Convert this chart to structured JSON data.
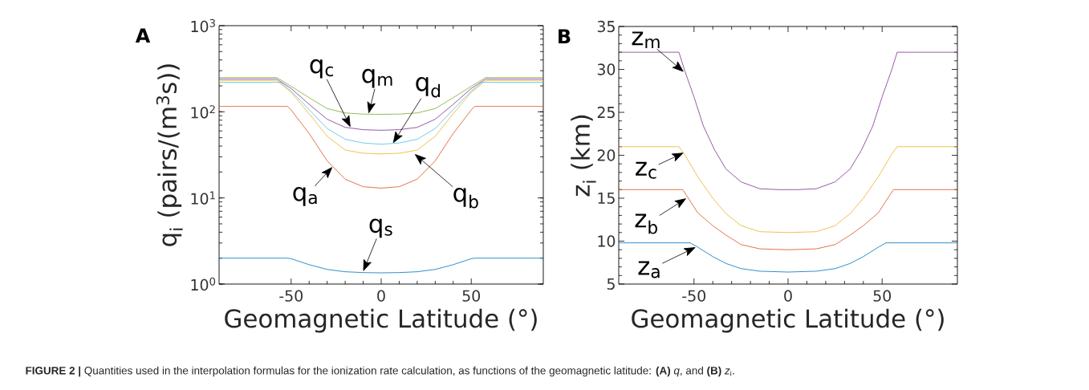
{
  "chart_data": [
    {
      "type": "line",
      "title": "A",
      "xlabel": "Geomagnetic Latitude (°)",
      "ylabel": "q$_{i}$ (pairs/(m$^{3}$s))",
      "log": "y",
      "xlim": [
        -90,
        90
      ],
      "xticks": [
        -50,
        0,
        50
      ],
      "ylim": [
        1,
        1000
      ],
      "yticks": [
        {
          "value": 1,
          "label": "10$^{0}$"
        },
        {
          "value": 10,
          "label": "10$^{1}$"
        },
        {
          "value": 100,
          "label": "10$^{2}$"
        },
        {
          "value": 1000,
          "label": "10$^{3}$"
        }
      ],
      "series": [
        {
          "color": "#0072bd",
          "x": [
            -90,
            -52,
            -50,
            -40,
            -30,
            -20,
            -10,
            0,
            10,
            20,
            30,
            40,
            50,
            52,
            90
          ],
          "values": [
            2,
            2,
            1.97,
            1.68,
            1.48,
            1.39,
            1.36,
            1.35,
            1.36,
            1.39,
            1.48,
            1.68,
            1.97,
            2,
            2
          ]
        },
        {
          "color": "#d95319",
          "x": [
            -90,
            -52,
            -50,
            -40,
            -30,
            -20,
            -10,
            0,
            10,
            20,
            30,
            40,
            50,
            52,
            90
          ],
          "values": [
            116,
            116,
            105,
            56,
            27,
            16.5,
            13.5,
            13,
            13.5,
            16.5,
            27,
            56,
            105,
            116,
            116
          ]
        },
        {
          "color": "#edb120",
          "x": [
            -90,
            -58,
            -50,
            -40,
            -30,
            -20,
            -10,
            0,
            10,
            20,
            30,
            40,
            50,
            58,
            90
          ],
          "values": [
            230,
            230,
            168,
            95,
            52,
            36,
            33,
            32.5,
            33,
            36,
            52,
            95,
            168,
            230,
            230
          ]
        },
        {
          "color": "#4dbeee",
          "x": [
            -90,
            -56,
            -50,
            -40,
            -30,
            -20,
            -10,
            0,
            10,
            20,
            30,
            40,
            50,
            56,
            90
          ],
          "values": [
            220,
            220,
            174,
            106,
            64,
            48,
            43.5,
            42,
            43.5,
            48,
            64,
            106,
            174,
            220,
            220
          ]
        },
        {
          "color": "#7e2f8e",
          "x": [
            -90,
            -58,
            -50,
            -40,
            -30,
            -20,
            -10,
            0,
            10,
            20,
            30,
            40,
            50,
            58,
            90
          ],
          "values": [
            240,
            240,
            187,
            122,
            82,
            66,
            62,
            61,
            62,
            66,
            82,
            122,
            187,
            240,
            240
          ]
        },
        {
          "color": "#77ac30",
          "x": [
            -90,
            -58,
            -50,
            -40,
            -30,
            -20,
            -10,
            0,
            10,
            20,
            30,
            40,
            50,
            58,
            90
          ],
          "values": [
            250,
            250,
            198,
            146,
            109,
            97,
            94,
            93.5,
            94,
            97,
            109,
            146,
            198,
            250,
            250
          ]
        }
      ],
      "annotations": [
        {
          "text": "q$_{c}$",
          "x": -17,
          "y": 66
        },
        {
          "text": "q$_{m}$",
          "x": -7,
          "y": 95
        },
        {
          "text": "q$_{d}$",
          "x": 6.5,
          "y": 43
        },
        {
          "text": "q$_{b}$",
          "x": 18.5,
          "y": 32.5
        },
        {
          "text": "q$_{a}$",
          "x": -27,
          "y": 23
        },
        {
          "text": "q$_{s}$",
          "x": -10,
          "y": 1.4
        },
        "**FIGURE 2 |** Quantities used in the interpolation formulas for the ionization rate calculation, as functions of the geomagnetic latitude: **(A)** *q*, and **(B)** *z*$_{i}$."
      ]
    },
    {
      "type": "line",
      "title": "B",
      "xlabel": "Geomagnetic Latitude (°)",
      "ylabel": "z$_{i}$ (km)",
      "xlim": [
        -90,
        90
      ],
      "xticks": [
        -50,
        0,
        50
      ],
      "ylim": [
        5,
        35
      ],
      "yticks": [
        5,
        10,
        15,
        20,
        25,
        30,
        35
      ],
      "series": [
        {
          "color": "#0072bd",
          "x": [
            -90,
            -52,
            -48,
            -40,
            -33,
            -25,
            -15,
            0,
            15,
            25,
            33,
            40,
            48,
            52,
            90
          ],
          "values": [
            9.8,
            9.8,
            9.3,
            8.2,
            7.4,
            6.8,
            6.5,
            6.4,
            6.5,
            6.8,
            7.4,
            8.2,
            9.3,
            9.8,
            9.8
          ]
        },
        {
          "color": "#d95319",
          "x": [
            -90,
            -56,
            -53,
            -48,
            -40,
            -33,
            -25,
            -15,
            0,
            15,
            25,
            33,
            40,
            48,
            53,
            56,
            90
          ],
          "values": [
            16,
            16,
            15,
            13.3,
            11.8,
            10.7,
            9.6,
            9.1,
            9,
            9.1,
            9.6,
            10.7,
            11.8,
            13.3,
            15,
            16,
            16
          ]
        },
        {
          "color": "#edb120",
          "x": [
            -90,
            -58,
            -55,
            -48,
            -40,
            -33,
            -25,
            -15,
            0,
            15,
            25,
            33,
            40,
            48,
            55,
            58,
            90
          ],
          "values": [
            21,
            21,
            20.1,
            17.5,
            15,
            13.2,
            11.8,
            11.1,
            11,
            11.1,
            11.8,
            13.2,
            15,
            17.5,
            20.1,
            21,
            21
          ]
        },
        {
          "color": "#7e2f8e",
          "x": [
            -90,
            -58,
            -55,
            -50,
            -45,
            -39,
            -33,
            -25,
            -15,
            -5,
            0,
            5,
            15,
            25,
            33,
            39,
            45,
            50,
            55,
            58,
            90
          ],
          "values": [
            32,
            32,
            29.9,
            26.8,
            23.4,
            20.6,
            18.4,
            16.9,
            16.1,
            16,
            16,
            16,
            16.1,
            16.9,
            18.4,
            20.6,
            23.4,
            26.8,
            29.9,
            32,
            32
          ]
        }
      ],
      "annotations": [
        {
          "text": "z$_{m}$",
          "x": -55.4,
          "y": 29.7
        },
        {
          "text": "z$_{c}$",
          "x": -55.4,
          "y": 20.3
        },
        {
          "text": "z$_{b}$",
          "x": -54,
          "y": 15
        },
        {
          "text": "z$_{a}$",
          "x": -49,
          "y": 9.3
        }
      ]
    }
  ]
}
